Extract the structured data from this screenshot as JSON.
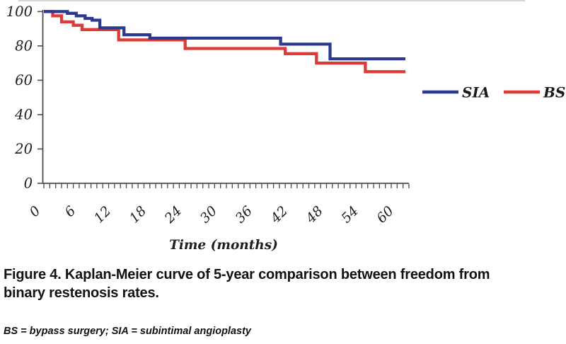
{
  "figure": {
    "caption": {
      "lines": [
        "Figure 4. Kaplan-Meier curve of 5-year comparison between freedom from",
        "binary restenosis rates."
      ]
    },
    "footnote": {
      "text": "BS = bypass surgery; SIA = subintimal angioplasty"
    }
  },
  "chart_data": {
    "type": "line",
    "subtype": "kaplan_meier_step",
    "title": "",
    "xlabel": "Time (months)",
    "ylabel": "",
    "xlim": [
      0,
      62
    ],
    "ylim": [
      0,
      100
    ],
    "y_ticks": [
      100,
      80,
      60,
      40,
      20,
      0
    ],
    "x_ticks_labeled": [
      0,
      6,
      12,
      18,
      24,
      30,
      36,
      42,
      48,
      54,
      60
    ],
    "x_minor_tick_interval_months": 1,
    "grid": false,
    "legend": {
      "position": "right-middle",
      "entries": [
        "SIA",
        "BS"
      ]
    },
    "colors": {
      "axis": "#4d4d4d",
      "text": "#1f1f1f",
      "sia": "#2b3a8f",
      "bs": "#de3b38"
    },
    "series": [
      {
        "name": "SIA",
        "color": "#2b3a8f",
        "steps_month_pct": [
          [
            0,
            100
          ],
          [
            4,
            99
          ],
          [
            5.5,
            97.5
          ],
          [
            7,
            96
          ],
          [
            8.2,
            95
          ],
          [
            9.5,
            90.5
          ],
          [
            13.6,
            86.5
          ],
          [
            18,
            84.5
          ],
          [
            40.2,
            81
          ],
          [
            48.6,
            72.5
          ]
        ],
        "end_month": 61.4
      },
      {
        "name": "BS",
        "color": "#de3b38",
        "steps_month_pct": [
          [
            0,
            100
          ],
          [
            1.5,
            97.5
          ],
          [
            3,
            94
          ],
          [
            5,
            92
          ],
          [
            6.5,
            89.5
          ],
          [
            12.7,
            83.5
          ],
          [
            24,
            78.5
          ],
          [
            41,
            75.5
          ],
          [
            46.3,
            70
          ],
          [
            54.6,
            65
          ]
        ],
        "end_month": 61.4
      }
    ]
  }
}
